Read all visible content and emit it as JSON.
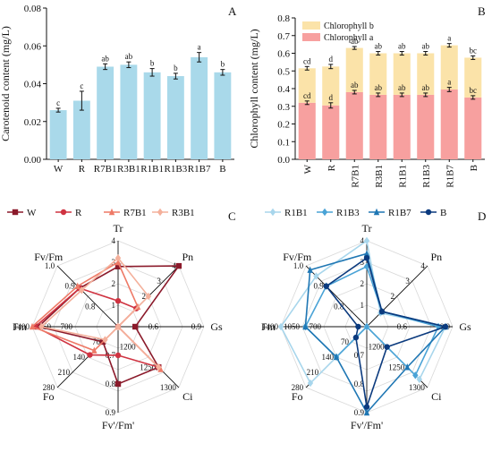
{
  "panels": {
    "A": "A",
    "B": "B",
    "C": "C",
    "D": "D"
  },
  "chart_data": [
    {
      "id": "A",
      "type": "bar",
      "ylabel": "Carotenoid content (mg/L)",
      "categories": [
        "W",
        "R",
        "R7B1",
        "R3B1",
        "R1B1",
        "R1B3",
        "R1B7",
        "B"
      ],
      "values": [
        0.026,
        0.031,
        0.049,
        0.05,
        0.046,
        0.044,
        0.054,
        0.046
      ],
      "errors": [
        0.001,
        0.005,
        0.0015,
        0.0015,
        0.002,
        0.0015,
        0.0025,
        0.0015
      ],
      "significance": [
        "c",
        "c",
        "ab",
        "ab",
        "b",
        "b",
        "a",
        "b"
      ],
      "ylim": [
        0,
        0.08
      ],
      "yticks": [
        "0.00",
        "0.02",
        "0.04",
        "0.06",
        "0.08"
      ],
      "color": "#a9d9ea"
    },
    {
      "id": "B",
      "type": "bar",
      "stacked": true,
      "ylabel": "Chlorophyll content (mg/L)",
      "categories": [
        "W",
        "R",
        "R7B1",
        "R3B1",
        "R1B1",
        "R1B3",
        "R1B7",
        "B"
      ],
      "series": [
        {
          "name": "Chlorophyll a",
          "color": "#f7a09f",
          "values": [
            0.32,
            0.305,
            0.38,
            0.365,
            0.365,
            0.365,
            0.395,
            0.35
          ],
          "errors": [
            0.01,
            0.015,
            0.01,
            0.01,
            0.01,
            0.01,
            0.012,
            0.01
          ],
          "significance": [
            "cd",
            "d",
            "ab",
            "ab",
            "ab",
            "ab",
            "a",
            "bc"
          ]
        },
        {
          "name": "Chlorophyll b",
          "color": "#fbe3a9",
          "totals": [
            0.515,
            0.525,
            0.63,
            0.6,
            0.6,
            0.6,
            0.645,
            0.575
          ],
          "errors": [
            0.01,
            0.012,
            0.008,
            0.01,
            0.01,
            0.01,
            0.01,
            0.01
          ],
          "significance": [
            "cd",
            "d",
            "ab",
            "ab",
            "ab",
            "ab",
            "a",
            "bc"
          ]
        }
      ],
      "ylim": [
        0,
        0.8
      ],
      "yticks": [
        "0.0",
        "0.1",
        "0.2",
        "0.3",
        "0.4",
        "0.5",
        "0.6",
        "0.7",
        "0.8"
      ]
    },
    {
      "id": "C",
      "type": "radar",
      "axes": [
        {
          "name": "Tr",
          "min": 0,
          "max": 4,
          "ticks": [
            "1",
            "2",
            "3",
            "4"
          ]
        },
        {
          "name": "Pn",
          "min": 0,
          "max": 4,
          "ticks": [
            "2",
            "3",
            "4"
          ]
        },
        {
          "name": "Gs",
          "min": 0.3,
          "max": 0.9,
          "ticks": [
            "0.6",
            "0.9"
          ]
        },
        {
          "name": "Ci",
          "min": 1150,
          "max": 1300,
          "ticks": [
            "1200",
            "1250",
            "1300"
          ]
        },
        {
          "name": "Fv'/Fm'",
          "min": 0.6,
          "max": 0.9,
          "ticks": [
            "0.7",
            "0.8",
            "0.9"
          ]
        },
        {
          "name": "Fo",
          "min": 0,
          "max": 280,
          "ticks": [
            "70",
            "140",
            "210",
            "280"
          ]
        },
        {
          "name": "Fm",
          "min": 0,
          "max": 1400,
          "ticks": [
            "700",
            "1050",
            "1400"
          ]
        },
        {
          "name": "Fv/Fm",
          "min": 0.7,
          "max": 1.0,
          "ticks": [
            "0.8",
            "0.9",
            "1.0"
          ]
        }
      ],
      "series": [
        {
          "name": "W",
          "color": "#8b1a2b",
          "marker": "square",
          "values": [
            2.8,
            4.0,
            0.42,
            1250,
            0.8,
            70,
            1300,
            0.89
          ]
        },
        {
          "name": "R",
          "color": "#cf3341",
          "marker": "circle",
          "values": [
            1.2,
            1.2,
            0.3,
            1250,
            0.7,
            130,
            1350,
            0.89
          ]
        },
        {
          "name": "R7B1",
          "color": "#ee7a67",
          "marker": "triangle",
          "values": [
            3.0,
            1.3,
            0.3,
            1255,
            0.6,
            110,
            1400,
            0.9
          ]
        },
        {
          "name": "R3B1",
          "color": "#f4b09b",
          "marker": "diamond",
          "values": [
            3.2,
            2.0,
            0.3,
            1250,
            0.6,
            60,
            1250,
            0.88
          ]
        }
      ]
    },
    {
      "id": "D",
      "type": "radar",
      "axes": [
        {
          "name": "Tr",
          "min": 0,
          "max": 4,
          "ticks": [
            "1",
            "2",
            "3",
            "4"
          ]
        },
        {
          "name": "Pn",
          "min": 0,
          "max": 4,
          "ticks": [
            "2",
            "3",
            "4"
          ]
        },
        {
          "name": "Gs",
          "min": 0.3,
          "max": 0.9,
          "ticks": [
            "0.6",
            "0.9"
          ]
        },
        {
          "name": "Ci",
          "min": 1150,
          "max": 1300,
          "ticks": [
            "1200",
            "1250",
            "1300"
          ]
        },
        {
          "name": "Fv'/Fm'",
          "min": 0.6,
          "max": 0.9,
          "ticks": [
            "0.7",
            "0.8",
            "0.9"
          ]
        },
        {
          "name": "Fo",
          "min": 0,
          "max": 280,
          "ticks": [
            "70",
            "140",
            "210",
            "280"
          ]
        },
        {
          "name": "Fm",
          "min": 0,
          "max": 1400,
          "ticks": [
            "700",
            "1050",
            "1400"
          ]
        },
        {
          "name": "Fv/Fm",
          "min": 0.7,
          "max": 1.0,
          "ticks": [
            "0.8",
            "0.9",
            "1.0"
          ]
        }
      ],
      "series": [
        {
          "name": "R1B1",
          "color": "#a8d6ec",
          "marker": "diamond",
          "values": [
            4.0,
            0.9,
            0.85,
            1280,
            0.6,
            260,
            1400,
            0.95
          ]
        },
        {
          "name": "R1B3",
          "color": "#4aa3d6",
          "marker": "diamond",
          "values": [
            2.8,
            1.0,
            0.8,
            1270,
            0.6,
            140,
            1000,
            0.9
          ]
        },
        {
          "name": "R1B7",
          "color": "#1f77b4",
          "marker": "triangle",
          "values": [
            3.4,
            1.0,
            0.85,
            1250,
            0.9,
            140,
            1000,
            0.98
          ]
        },
        {
          "name": "B",
          "color": "#0b3a7e",
          "marker": "circle",
          "values": [
            3.2,
            1.0,
            0.85,
            1200,
            0.88,
            50,
            140,
            0.9
          ]
        }
      ]
    }
  ]
}
